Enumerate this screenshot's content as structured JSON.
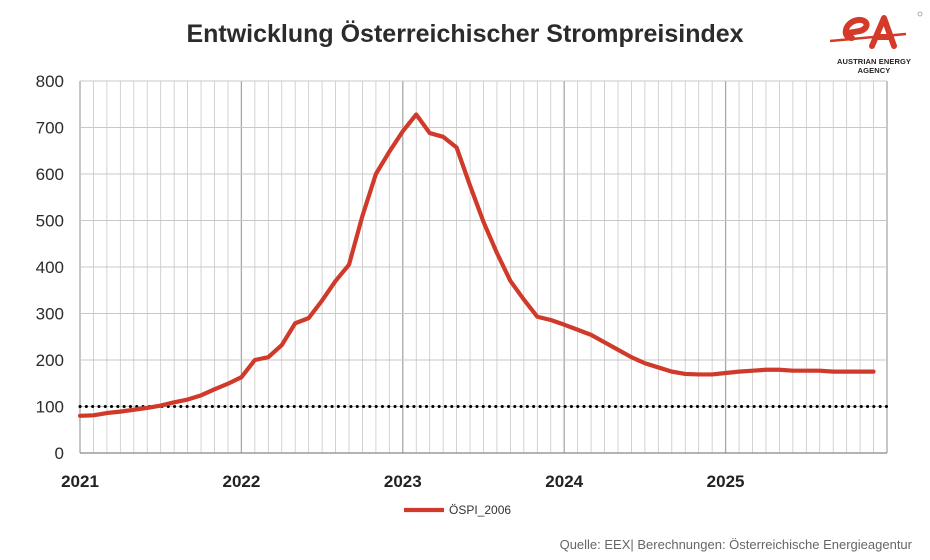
{
  "header": {
    "title": "Entwicklung Österreichischer Strompreisindex",
    "logo_text": "AUSTRIAN ENERGY AGENCY"
  },
  "source_text": "Quelle: EEX| Berechnungen: Österreichische Energieagentur",
  "colors": {
    "series": "#d03a2a",
    "grid": "#c8c8c8",
    "reference": "#000000",
    "logo": "#d33a2a"
  },
  "chart_data": {
    "type": "line",
    "title": "Entwicklung Österreichischer Strompreisindex",
    "xlabel": "",
    "ylabel": "",
    "ylim": [
      0,
      800
    ],
    "yticks": [
      0,
      100,
      200,
      300,
      400,
      500,
      600,
      700,
      800
    ],
    "xlim": [
      "2021-01",
      "2026-01"
    ],
    "xtick_labels": [
      "2021",
      "2022",
      "2023",
      "2024",
      "2025"
    ],
    "grid": true,
    "legend_position": "bottom-center",
    "reference_line": {
      "y": 100,
      "style": "dotted"
    },
    "series": [
      {
        "name": "ÖSPI_2006",
        "x": [
          "2021-01",
          "2021-02",
          "2021-03",
          "2021-04",
          "2021-05",
          "2021-06",
          "2021-07",
          "2021-08",
          "2021-09",
          "2021-10",
          "2021-11",
          "2021-12",
          "2022-01",
          "2022-02",
          "2022-03",
          "2022-04",
          "2022-05",
          "2022-06",
          "2022-07",
          "2022-08",
          "2022-09",
          "2022-10",
          "2022-11",
          "2022-12",
          "2023-01",
          "2023-02",
          "2023-03",
          "2023-04",
          "2023-05",
          "2023-06",
          "2023-07",
          "2023-08",
          "2023-09",
          "2023-10",
          "2023-11",
          "2023-12",
          "2024-01",
          "2024-02",
          "2024-03",
          "2024-04",
          "2024-05",
          "2024-06",
          "2024-07",
          "2024-08",
          "2024-09",
          "2024-10",
          "2024-11",
          "2024-12",
          "2025-01",
          "2025-02",
          "2025-03",
          "2025-04",
          "2025-05",
          "2025-06",
          "2025-07",
          "2025-08",
          "2025-09",
          "2025-10",
          "2025-11",
          "2025-12"
        ],
        "values": [
          80,
          81,
          86,
          89,
          93,
          97,
          102,
          109,
          115,
          124,
          137,
          149,
          163,
          200,
          206,
          232,
          279,
          290,
          328,
          370,
          405,
          510,
          600,
          648,
          692,
          728,
          688,
          680,
          657,
          575,
          497,
          430,
          370,
          330,
          293,
          286,
          276,
          265,
          254,
          238,
          222,
          206,
          193,
          184,
          175,
          170,
          169,
          169,
          172,
          175,
          177,
          179,
          179,
          177,
          177,
          177,
          175,
          175,
          175,
          175
        ]
      }
    ]
  }
}
